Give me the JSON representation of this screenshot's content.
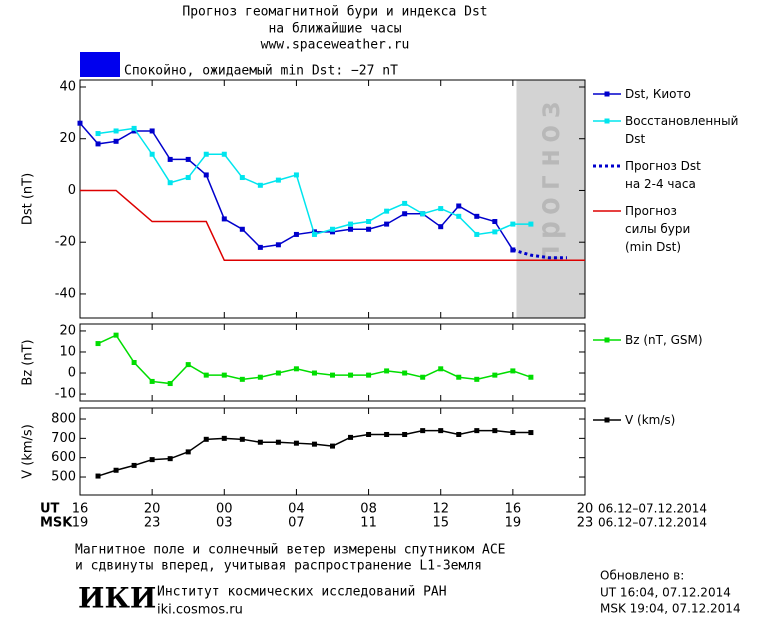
{
  "header": {
    "title": "Прогноз геомагнитной бури и индекса Dst",
    "subtitle": "на ближайшие часы",
    "url": "www.spaceweather.ru",
    "status": "Спокойно, ожидаемый min Dst: −27 nT",
    "status_color": "#0000ee"
  },
  "chart_data": [
    {
      "type": "line",
      "ylabel": "Dst (nT)",
      "ylim": [
        -49.3,
        42.7
      ],
      "yticks": [
        40,
        20,
        0,
        -20,
        -40
      ],
      "forecast_zone": {
        "x": [
          24.2,
          28
        ],
        "label": "прогноз"
      },
      "series": [
        {
          "name": "Dst, Киото",
          "color": "#0000cc",
          "marker": true,
          "x": [
            0,
            1,
            2,
            3,
            4,
            5,
            6,
            7,
            8,
            9,
            10,
            11,
            12,
            13,
            14,
            15,
            16,
            17,
            18,
            19,
            20,
            21,
            22,
            23,
            24
          ],
          "values": [
            26,
            18,
            19,
            23,
            23,
            12,
            12,
            6,
            -11,
            -15,
            -22,
            -21,
            -17,
            -16,
            -16,
            -15,
            -15,
            -13,
            -9,
            -9,
            -14,
            -6,
            -10,
            -12,
            -23
          ]
        },
        {
          "name": "Восстановленный\nDst",
          "color": "#00e5ee",
          "marker": true,
          "x": [
            1,
            2,
            3,
            4,
            5,
            6,
            7,
            8,
            9,
            10,
            11,
            12,
            13,
            14,
            15,
            16,
            17,
            18,
            19,
            20,
            21,
            22,
            23,
            24,
            25
          ],
          "values": [
            22,
            23,
            24,
            14,
            3,
            5,
            14,
            14,
            5,
            2,
            4,
            6,
            -17,
            -15,
            -13,
            -12,
            -8,
            -5,
            -9,
            -7,
            -10,
            -17,
            -16,
            -13,
            -13
          ]
        },
        {
          "name": "Прогноз Dst\nна 2-4 часа",
          "color": "#0000cc",
          "marker": false,
          "dash": true,
          "x": [
            24,
            25,
            26,
            27
          ],
          "values": [
            -23,
            -25,
            -26,
            -26
          ]
        },
        {
          "name": "Прогноз\nсилы бури\n(min Dst)",
          "color": "#dd0000",
          "marker": false,
          "x": [
            0,
            2,
            4,
            7,
            8,
            28
          ],
          "values": [
            0,
            0,
            -12,
            -12,
            -27,
            -27
          ]
        }
      ]
    },
    {
      "type": "line",
      "ylabel": "Bz (nT)",
      "ylim": [
        -13.3,
        23.3
      ],
      "yticks": [
        20,
        10,
        0,
        -10
      ],
      "series": [
        {
          "name": "Bz (nT, GSM)",
          "color": "#00dd00",
          "marker": true,
          "x": [
            1,
            2,
            3,
            4,
            5,
            6,
            7,
            8,
            9,
            10,
            11,
            12,
            13,
            14,
            15,
            16,
            17,
            18,
            19,
            20,
            21,
            22,
            23,
            24,
            25
          ],
          "values": [
            14,
            18,
            5,
            -4,
            -5,
            4,
            -1,
            -1,
            -3,
            -2,
            0,
            2,
            0,
            -1,
            -1,
            -1,
            1,
            0,
            -2,
            2,
            -2,
            -3,
            -1,
            1,
            -2
          ]
        }
      ]
    },
    {
      "type": "line",
      "ylabel": "V (km/s)",
      "ylim": [
        407,
        857
      ],
      "yticks": [
        800,
        700,
        600,
        500
      ],
      "xlim": [
        0,
        28
      ],
      "xticks": [
        {
          "value": 0,
          "label": "16"
        },
        {
          "value": 4,
          "label": "20"
        },
        {
          "value": 8,
          "label": "00"
        },
        {
          "value": 12,
          "label": "04"
        },
        {
          "value": 16,
          "label": "08"
        },
        {
          "value": 20,
          "label": "12"
        },
        {
          "value": 24,
          "label": "16"
        },
        {
          "value": 28,
          "label": "20"
        }
      ],
      "x_row_label": "UT",
      "x2_row_label": "MSK",
      "x2ticklabels": [
        "19",
        "23",
        "03",
        "07",
        "11",
        "15",
        "19",
        "23"
      ],
      "date_range_ut": "06.12–07.12.2014",
      "date_range_msk": "06.12–07.12.2014",
      "series": [
        {
          "name": "V (km/s)",
          "color": "#000000",
          "marker": true,
          "x": [
            1,
            2,
            3,
            4,
            5,
            6,
            7,
            8,
            9,
            10,
            11,
            12,
            13,
            14,
            15,
            16,
            17,
            18,
            19,
            20,
            21,
            22,
            23,
            24,
            25
          ],
          "values": [
            505,
            535,
            560,
            590,
            595,
            630,
            695,
            700,
            695,
            680,
            680,
            675,
            670,
            660,
            705,
            720,
            720,
            720,
            740,
            740,
            720,
            740,
            740,
            730,
            730
          ]
        }
      ]
    }
  ],
  "footer": {
    "note_line1": "Магнитное поле и солнечный ветер измерены спутником ACE",
    "note_line2": "и сдвинуты вперед, учитывая распространение L1-Земля",
    "logo": "ИКИ",
    "institute": "Институт космических исследований РАН",
    "site": "iki.cosmos.ru",
    "updated": "Обновлено в:",
    "updated_ut": "UT  16:04, 07.12.2014",
    "updated_msk": "MSK 19:04, 07.12.2014"
  }
}
